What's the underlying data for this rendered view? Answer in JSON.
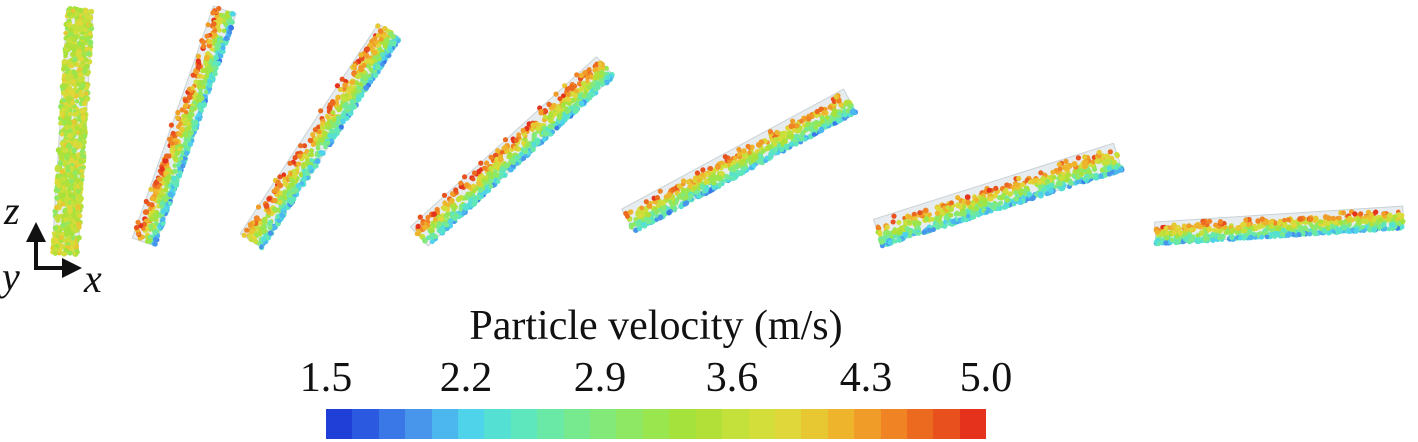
{
  "figure": {
    "panel_count": 7,
    "axes": {
      "z_label": "z",
      "y_label": "y",
      "x_label": "x"
    },
    "colorbar": {
      "title": "Particle velocity (m/s)",
      "unit": "m/s",
      "min": 1.5,
      "max": 5.0,
      "tick_labels": [
        "1.5",
        "2.2",
        "2.9",
        "3.6",
        "4.3",
        "5.0"
      ],
      "colors": [
        "#1f3fd6",
        "#2b59e0",
        "#3a78e8",
        "#4796ec",
        "#4cb7ef",
        "#4fd3ea",
        "#55e0d4",
        "#5ee6bd",
        "#6ae8a6",
        "#77ea90",
        "#83ea7a",
        "#8fe864",
        "#99e64e",
        "#a6e23c",
        "#b3e038",
        "#c4e03a",
        "#d3de3a",
        "#e0d83a",
        "#e8c832",
        "#eeb42c",
        "#f09c28",
        "#f08424",
        "#ec6a20",
        "#e8501e",
        "#e4321c"
      ]
    },
    "colors": {
      "tube_fill": "#e6ecef",
      "tube_stroke": "#c9d2d6",
      "axis_color": "#111111"
    }
  }
}
